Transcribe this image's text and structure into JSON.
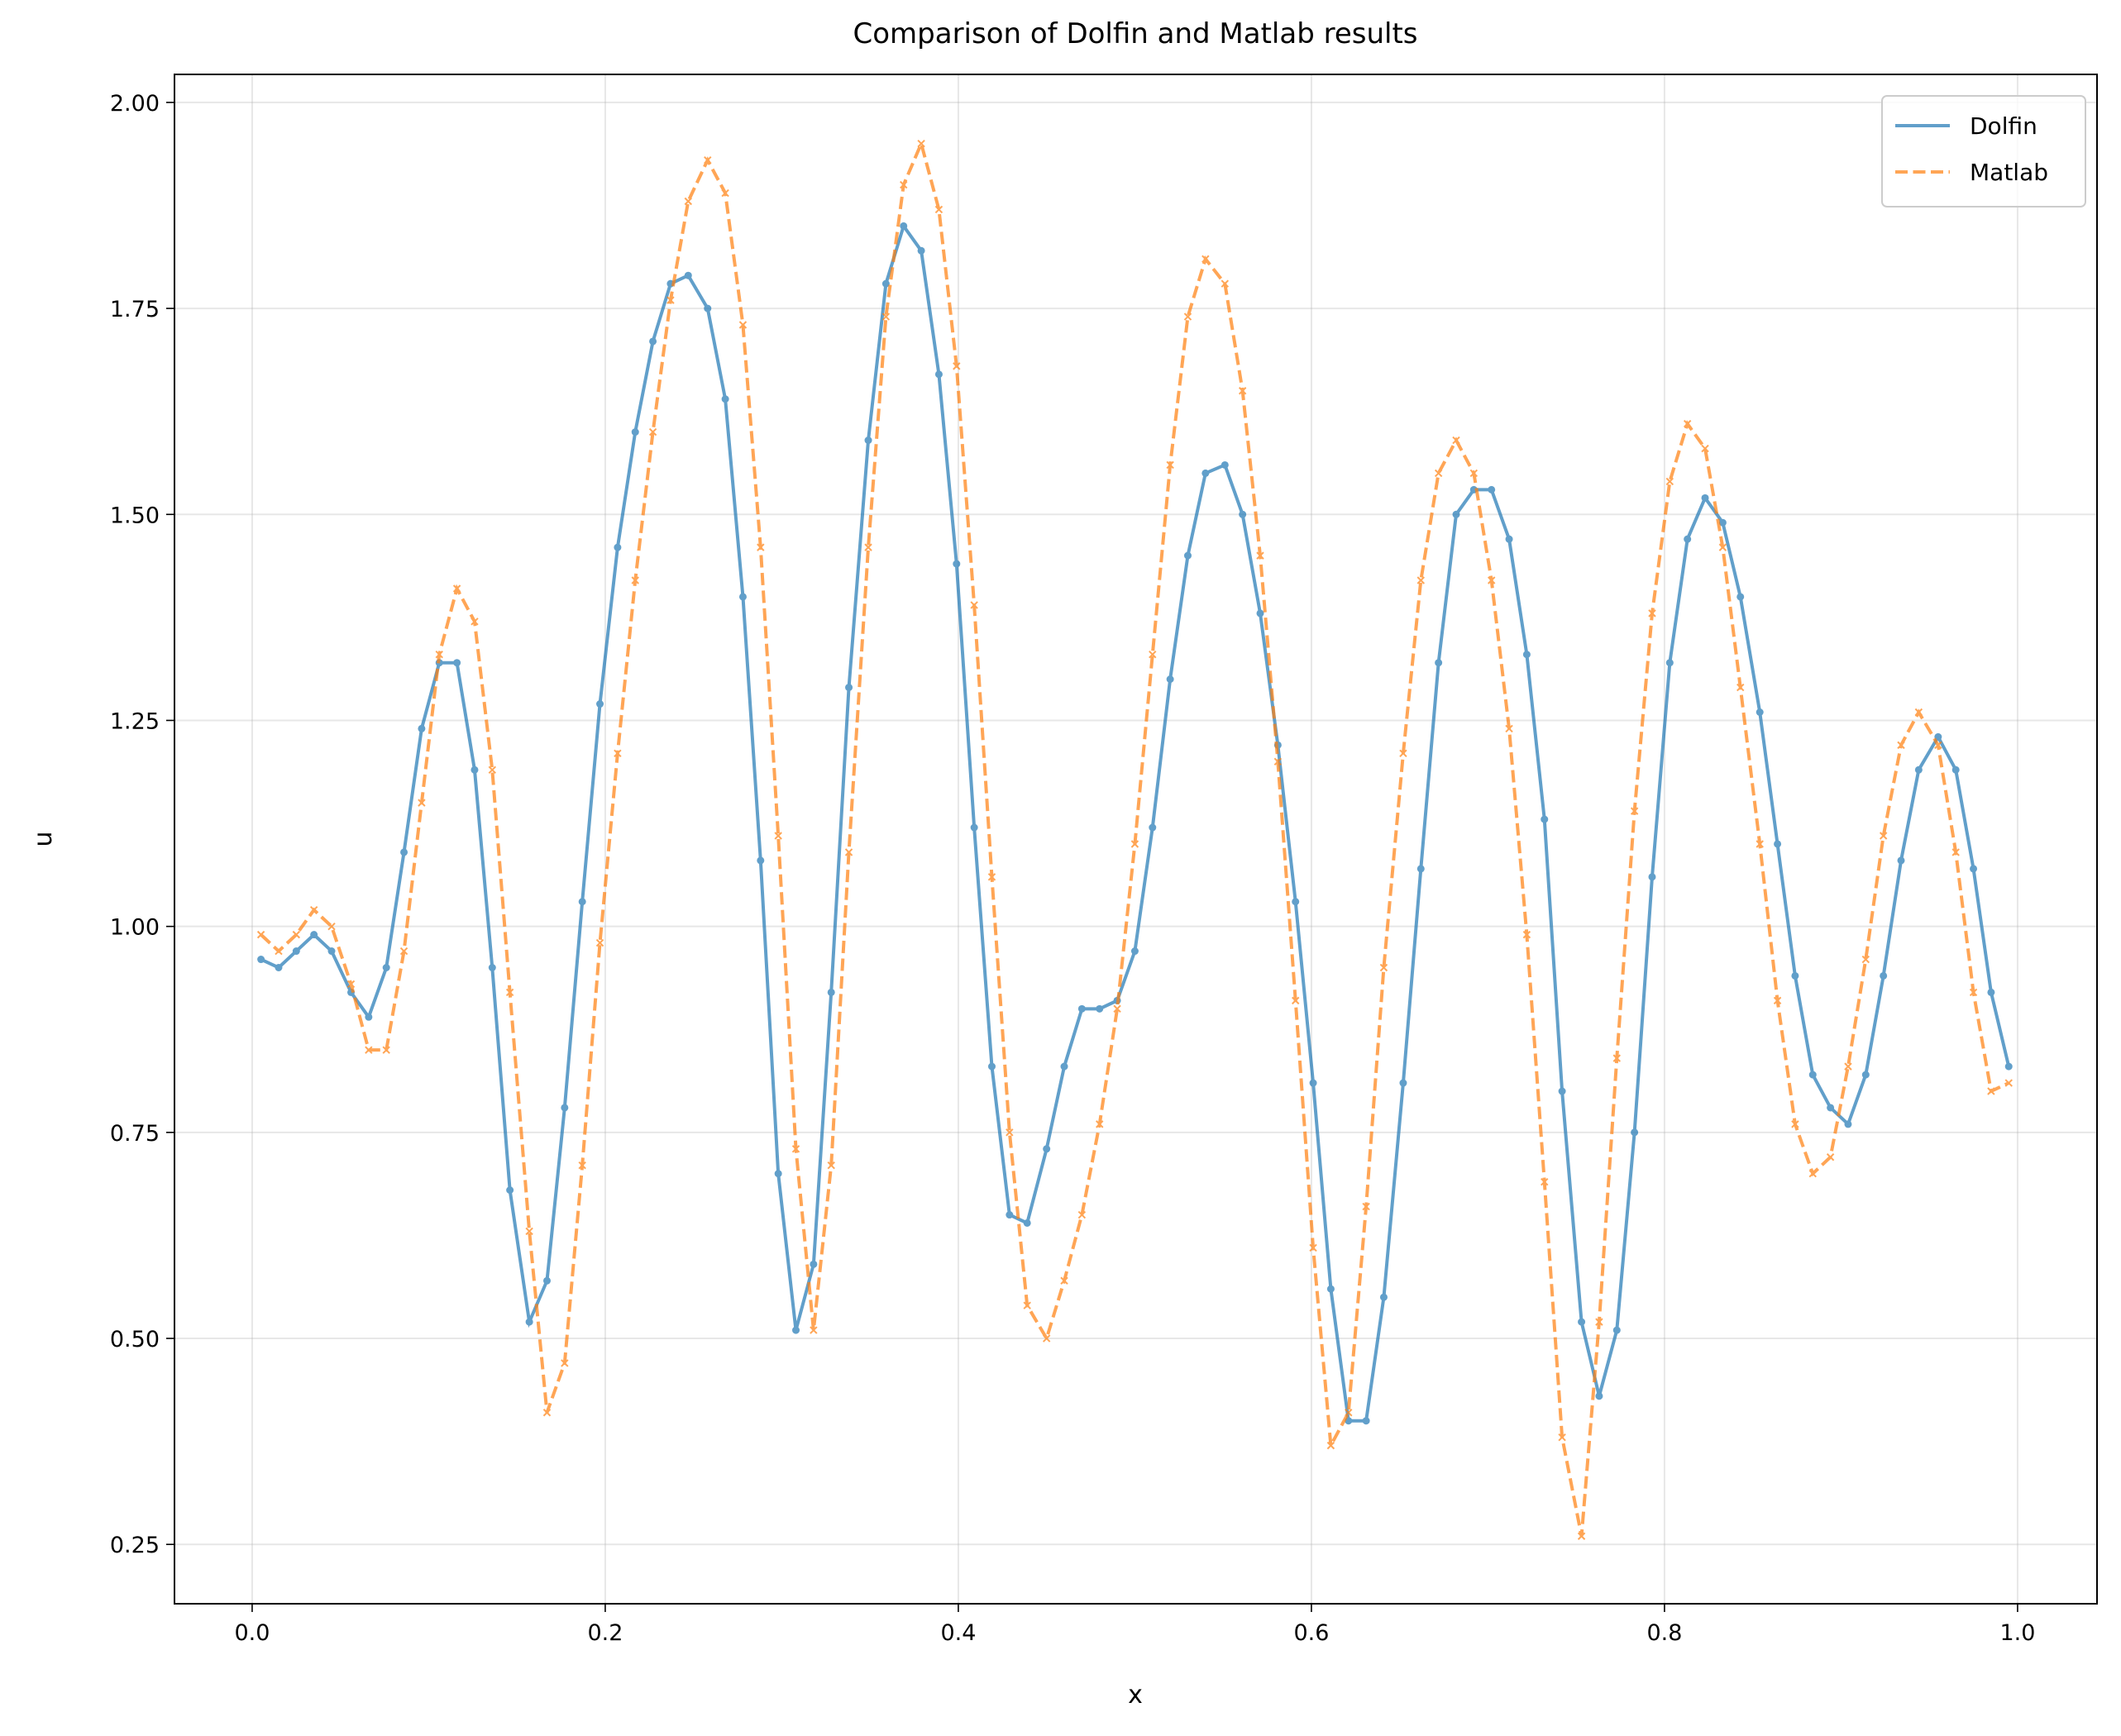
{
  "chart_data": {
    "type": "line",
    "title": "Comparison of Dolfin and Matlab results",
    "x_label": "x",
    "y_label": "u",
    "x": [
      0.005,
      0.015,
      0.025,
      0.035,
      0.045,
      0.056,
      0.066,
      0.076,
      0.086,
      0.096,
      0.106,
      0.116,
      0.126,
      0.136,
      0.146,
      0.157,
      0.167,
      0.177,
      0.187,
      0.197,
      0.207,
      0.217,
      0.227,
      0.237,
      0.247,
      0.258,
      0.268,
      0.278,
      0.288,
      0.298,
      0.308,
      0.318,
      0.328,
      0.338,
      0.349,
      0.359,
      0.369,
      0.379,
      0.389,
      0.399,
      0.409,
      0.419,
      0.429,
      0.439,
      0.45,
      0.46,
      0.47,
      0.48,
      0.49,
      0.5,
      0.51,
      0.52,
      0.53,
      0.54,
      0.551,
      0.561,
      0.571,
      0.581,
      0.591,
      0.601,
      0.611,
      0.621,
      0.631,
      0.641,
      0.652,
      0.662,
      0.672,
      0.682,
      0.692,
      0.702,
      0.712,
      0.722,
      0.732,
      0.742,
      0.753,
      0.763,
      0.773,
      0.783,
      0.793,
      0.803,
      0.813,
      0.823,
      0.833,
      0.843,
      0.854,
      0.864,
      0.874,
      0.884,
      0.894,
      0.904,
      0.914,
      0.924,
      0.934,
      0.944,
      0.955,
      0.965,
      0.975,
      0.985,
      0.995
    ],
    "series": [
      {
        "name": "Dolfin",
        "color": "#1f77b4",
        "marker": "circle",
        "dash": "solid",
        "values": [
          0.96,
          0.95,
          0.97,
          0.99,
          0.97,
          0.92,
          0.89,
          0.95,
          1.09,
          1.24,
          1.32,
          1.32,
          1.19,
          0.95,
          0.68,
          0.52,
          0.57,
          0.78,
          1.03,
          1.27,
          1.46,
          1.6,
          1.71,
          1.78,
          1.79,
          1.75,
          1.64,
          1.4,
          1.08,
          0.7,
          0.51,
          0.59,
          0.92,
          1.29,
          1.59,
          1.78,
          1.85,
          1.82,
          1.67,
          1.44,
          1.12,
          0.83,
          0.65,
          0.64,
          0.73,
          0.83,
          0.9,
          0.9,
          0.91,
          0.97,
          1.12,
          1.3,
          1.45,
          1.55,
          1.56,
          1.5,
          1.38,
          1.22,
          1.03,
          0.81,
          0.56,
          0.4,
          0.4,
          0.55,
          0.81,
          1.07,
          1.32,
          1.5,
          1.53,
          1.53,
          1.47,
          1.33,
          1.13,
          0.8,
          0.52,
          0.43,
          0.51,
          0.75,
          1.06,
          1.32,
          1.47,
          1.52,
          1.49,
          1.4,
          1.26,
          1.1,
          0.94,
          0.82,
          0.78,
          0.76,
          0.82,
          0.94,
          1.08,
          1.19,
          1.23,
          1.19,
          1.07,
          0.92,
          0.83
        ]
      },
      {
        "name": "Matlab",
        "color": "#ff7f0e",
        "marker": "x",
        "dash": "dashed",
        "values": [
          0.99,
          0.97,
          0.99,
          1.02,
          1.0,
          0.93,
          0.85,
          0.85,
          0.97,
          1.15,
          1.33,
          1.41,
          1.37,
          1.19,
          0.92,
          0.63,
          0.41,
          0.47,
          0.71,
          0.98,
          1.21,
          1.42,
          1.6,
          1.76,
          1.88,
          1.93,
          1.89,
          1.73,
          1.46,
          1.11,
          0.73,
          0.51,
          0.71,
          1.09,
          1.46,
          1.74,
          1.9,
          1.95,
          1.87,
          1.68,
          1.39,
          1.06,
          0.75,
          0.54,
          0.5,
          0.57,
          0.65,
          0.76,
          0.9,
          1.1,
          1.33,
          1.56,
          1.74,
          1.81,
          1.78,
          1.65,
          1.45,
          1.2,
          0.91,
          0.61,
          0.37,
          0.41,
          0.66,
          0.95,
          1.21,
          1.42,
          1.55,
          1.59,
          1.55,
          1.42,
          1.24,
          0.99,
          0.69,
          0.38,
          0.26,
          0.52,
          0.84,
          1.14,
          1.38,
          1.54,
          1.61,
          1.58,
          1.46,
          1.29,
          1.1,
          0.91,
          0.76,
          0.7,
          0.72,
          0.83,
          0.96,
          1.11,
          1.22,
          1.26,
          1.22,
          1.09,
          0.92,
          0.8,
          0.81
        ]
      }
    ],
    "xlim": [
      -0.044,
      1.045
    ],
    "ylim": [
      0.178,
      2.034
    ],
    "xticks": [
      {
        "value": 0,
        "label": "0.0"
      },
      0.2,
      0.4,
      0.6,
      0.8,
      {
        "value": 1,
        "label": "1.0"
      }
    ],
    "yticks": [
      {
        "value": 0.25,
        "label": "0.25"
      },
      {
        "value": 0.5,
        "label": "0.50"
      },
      {
        "value": 0.75,
        "label": "0.75"
      },
      {
        "value": 1,
        "label": "1.00"
      },
      {
        "value": 1.25,
        "label": "1.25"
      },
      {
        "value": 1.5,
        "label": "1.50"
      },
      {
        "value": 1.75,
        "label": "1.75"
      },
      {
        "value": 2,
        "label": "2.00"
      }
    ],
    "grid": true,
    "legend": "upper right"
  }
}
